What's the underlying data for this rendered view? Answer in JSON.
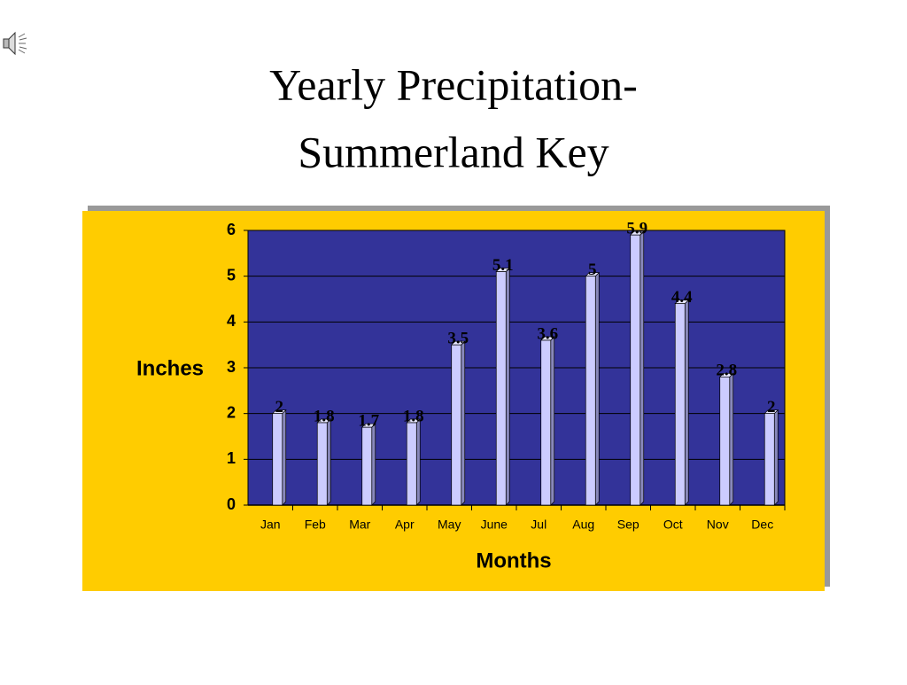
{
  "chart_data": {
    "type": "bar",
    "title": [
      "Yearly Precipitation-",
      "Summerland Key"
    ],
    "y_label": "Inches",
    "x_label": "Months",
    "categories": [
      "Jan",
      "Feb",
      "Mar",
      "Apr",
      "May",
      "June",
      "Jul",
      "Aug",
      "Sep",
      "Oct",
      "Nov",
      "Dec"
    ],
    "values": [
      2,
      1.8,
      1.7,
      1.8,
      3.5,
      5.1,
      3.6,
      5,
      5.9,
      4.4,
      2.8,
      2
    ],
    "color": "#ccccff",
    "ylim": [
      0,
      6
    ],
    "yticks": [
      0,
      1,
      2,
      3,
      4,
      5,
      6
    ],
    "grid": true
  }
}
